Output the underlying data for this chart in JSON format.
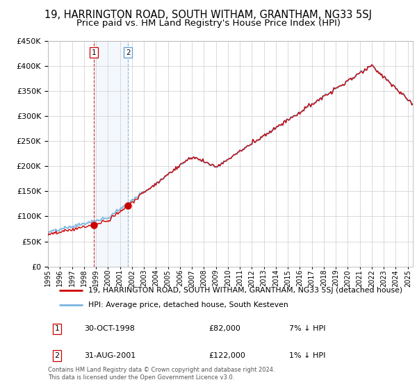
{
  "title": "19, HARRINGTON ROAD, SOUTH WITHAM, GRANTHAM, NG33 5SJ",
  "subtitle": "Price paid vs. HM Land Registry's House Price Index (HPI)",
  "legend_line1": "19, HARRINGTON ROAD, SOUTH WITHAM, GRANTHAM, NG33 5SJ (detached house)",
  "legend_line2": "HPI: Average price, detached house, South Kesteven",
  "sale1_label": "1",
  "sale1_date": "30-OCT-1998",
  "sale1_price": "£82,000",
  "sale1_hpi": "7% ↓ HPI",
  "sale2_label": "2",
  "sale2_date": "31-AUG-2001",
  "sale2_price": "£122,000",
  "sale2_hpi": "1% ↓ HPI",
  "footer": "Contains HM Land Registry data © Crown copyright and database right 2024.\nThis data is licensed under the Open Government Licence v3.0.",
  "hpi_color": "#7ab4e0",
  "price_color": "#cc0000",
  "sale1_x": 1998.83,
  "sale1_y": 82000,
  "sale2_x": 2001.67,
  "sale2_y": 122000,
  "shade_x1": 1998.83,
  "shade_x2": 2001.67,
  "ylim": [
    0,
    450000
  ],
  "xlim": [
    1995.0,
    2025.42
  ],
  "background_color": "#ffffff",
  "grid_color": "#cccccc",
  "title_fontsize": 10.5,
  "subtitle_fontsize": 9.5
}
